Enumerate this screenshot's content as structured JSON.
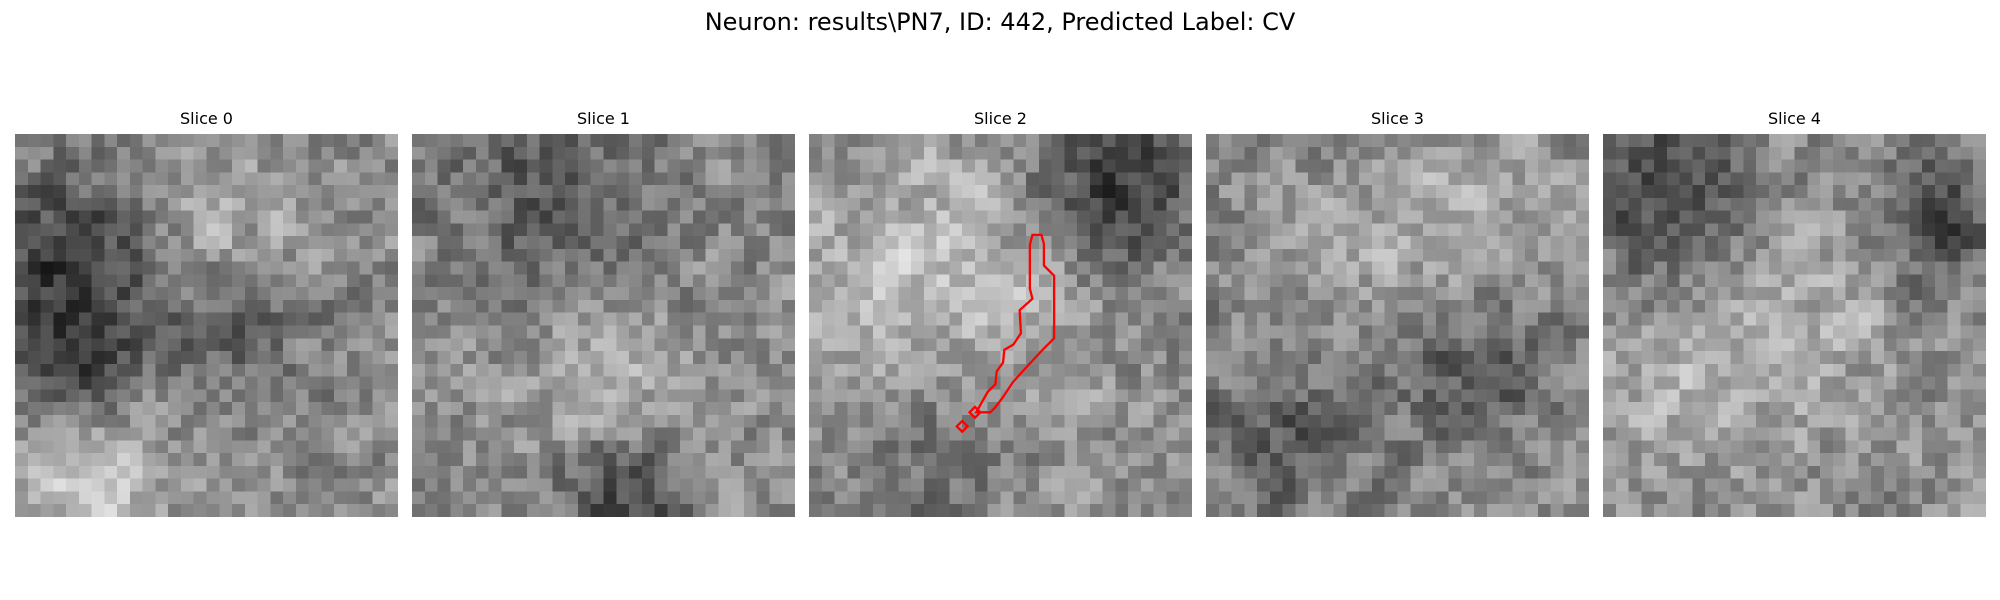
{
  "figure": {
    "suptitle": "Neuron: results\\PN7, ID: 442, Predicted Label: CV",
    "contour_color": "#ff0000",
    "colormap": "gray",
    "grid_size": 30
  },
  "panels": [
    {
      "title": "Slice 0",
      "seed": 11,
      "has_contour": false,
      "blobs": [
        {
          "cx": 4,
          "cy": 10,
          "r": 5,
          "v": -0.35
        },
        {
          "cx": 17,
          "cy": 15,
          "r": 4,
          "v": -0.2
        },
        {
          "cx": 4,
          "cy": 18,
          "r": 3,
          "v": -0.3
        },
        {
          "cx": 15,
          "cy": 7,
          "r": 4,
          "v": 0.15
        },
        {
          "cx": 5,
          "cy": 27,
          "r": 4,
          "v": 0.25
        }
      ]
    },
    {
      "title": "Slice 1",
      "seed": 23,
      "has_contour": false,
      "blobs": [
        {
          "cx": 10,
          "cy": 4,
          "r": 6,
          "v": -0.2
        },
        {
          "cx": 15,
          "cy": 20,
          "r": 5,
          "v": 0.15
        },
        {
          "cx": 16,
          "cy": 28,
          "r": 4,
          "v": -0.3
        }
      ]
    },
    {
      "title": "Slice 2",
      "seed": 37,
      "has_contour": true,
      "blobs": [
        {
          "cx": 10,
          "cy": 11,
          "r": 8,
          "v": 0.2
        },
        {
          "cx": 24,
          "cy": 3,
          "r": 5,
          "v": -0.35
        },
        {
          "cx": 10,
          "cy": 24,
          "r": 5,
          "v": -0.15
        }
      ]
    },
    {
      "title": "Slice 3",
      "seed": 49,
      "has_contour": false,
      "blobs": [
        {
          "cx": 18,
          "cy": 8,
          "r": 6,
          "v": 0.15
        },
        {
          "cx": 20,
          "cy": 17,
          "r": 5,
          "v": -0.25
        },
        {
          "cx": 5,
          "cy": 23,
          "r": 4,
          "v": -0.2
        }
      ]
    },
    {
      "title": "Slice 4",
      "seed": 61,
      "has_contour": false,
      "blobs": [
        {
          "cx": 5,
          "cy": 4,
          "r": 5,
          "v": -0.3
        },
        {
          "cx": 14,
          "cy": 14,
          "r": 6,
          "v": 0.15
        },
        {
          "cx": 26,
          "cy": 6,
          "r": 4,
          "v": -0.25
        },
        {
          "cx": 6,
          "cy": 20,
          "r": 4,
          "v": 0.12
        }
      ]
    }
  ]
}
